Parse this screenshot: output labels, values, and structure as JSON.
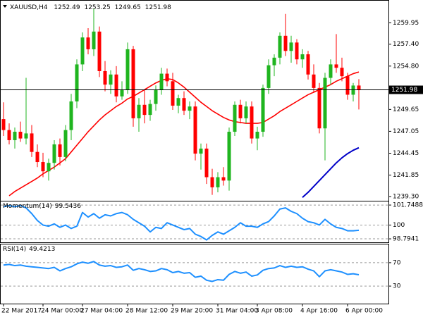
{
  "chart_data": [
    {
      "type": "candlestick",
      "title": "XAUUSD,H4",
      "categories": [
        "22 Mar 2017",
        null,
        null,
        null,
        null,
        null,
        null,
        "24 Mar 00:00",
        null,
        null,
        null,
        null,
        null,
        null,
        "27 Mar 04:00",
        null,
        null,
        null,
        null,
        null,
        null,
        null,
        "28 Mar 12:00",
        null,
        null,
        null,
        null,
        null,
        null,
        null,
        "29 Mar 20:00",
        null,
        null,
        null,
        null,
        null,
        null,
        null,
        "31 Mar 04:00",
        null,
        null,
        null,
        null,
        null,
        null,
        "3 Apr 08:00",
        null,
        null,
        null,
        null,
        null,
        null,
        null,
        "4 Apr 16:00",
        null,
        null,
        null,
        null,
        null,
        null,
        null,
        "6 Apr 00:00",
        null,
        null
      ],
      "open": [
        1248.5,
        1247.2,
        1246.0,
        1247.0,
        1246.2,
        1246.8,
        1244.6,
        1243.4,
        1242.3,
        1243.3,
        1245.5,
        1244.0,
        1247.2,
        1250.6,
        1255.0,
        1258.2,
        1256.8,
        1258.9,
        1254.2,
        1252.6,
        1253.8,
        1251.2,
        1252.0,
        1256.8,
        1248.6,
        1250.2,
        1249.0,
        1250.3,
        1252.0,
        1253.9,
        1253.0,
        1250.1,
        1251.0,
        1249.5,
        1250.0,
        1244.4,
        1245.0,
        1241.6,
        1240.4,
        1241.6,
        1241.2,
        1247.0,
        1250.2,
        1248.6,
        1250.0,
        1246.2,
        1247.0,
        1252.2,
        1254.9,
        1255.8,
        1258.4,
        1256.6,
        1257.6,
        1255.6,
        1256.2,
        1253.8,
        1252.2,
        1247.4,
        1253.4,
        1255.0,
        1254.6,
        1253.6,
        1251.4,
        1252.49
      ],
      "high": [
        1250.5,
        1248.0,
        1247.5,
        1248.2,
        1253.4,
        1247.8,
        1245.5,
        1244.5,
        1243.8,
        1246.0,
        1246.2,
        1247.8,
        1251.5,
        1255.6,
        1258.8,
        1259.3,
        1261.6,
        1259.5,
        1255.4,
        1254.3,
        1254.8,
        1253.0,
        1257.6,
        1257.2,
        1251.0,
        1252.0,
        1250.8,
        1252.5,
        1254.6,
        1254.5,
        1254.0,
        1251.4,
        1251.8,
        1250.6,
        1250.6,
        1245.6,
        1245.6,
        1242.6,
        1242.2,
        1242.8,
        1247.5,
        1250.6,
        1250.8,
        1250.6,
        1250.6,
        1247.6,
        1252.6,
        1255.6,
        1256.2,
        1258.8,
        1261.0,
        1258.4,
        1258.0,
        1256.8,
        1256.6,
        1255.0,
        1252.8,
        1254.0,
        1255.6,
        1258.6,
        1255.8,
        1254.0,
        1252.8,
        1253.25
      ],
      "low": [
        1246.5,
        1245.5,
        1245.0,
        1245.8,
        1245.5,
        1244.0,
        1242.8,
        1241.6,
        1241.2,
        1242.5,
        1243.0,
        1243.5,
        1246.0,
        1249.8,
        1254.2,
        1256.2,
        1256.0,
        1253.5,
        1251.8,
        1251.5,
        1250.5,
        1250.8,
        1251.5,
        1247.6,
        1247.0,
        1248.0,
        1248.3,
        1249.5,
        1251.4,
        1252.4,
        1249.6,
        1249.2,
        1249.0,
        1248.5,
        1243.6,
        1242.5,
        1240.8,
        1239.5,
        1239.8,
        1240.6,
        1240.0,
        1246.5,
        1248.0,
        1248.0,
        1245.6,
        1244.8,
        1246.4,
        1251.5,
        1253.6,
        1255.0,
        1256.0,
        1255.2,
        1255.0,
        1254.6,
        1253.2,
        1251.6,
        1246.8,
        1243.6,
        1252.6,
        1254.0,
        1253.0,
        1250.8,
        1250.6,
        1249.65
      ],
      "close": [
        1247.2,
        1246.0,
        1247.0,
        1246.2,
        1246.8,
        1244.6,
        1243.4,
        1242.3,
        1243.3,
        1245.5,
        1244.0,
        1247.2,
        1250.6,
        1255.0,
        1258.2,
        1256.8,
        1258.9,
        1254.2,
        1252.6,
        1253.8,
        1251.2,
        1252.0,
        1256.8,
        1248.6,
        1250.2,
        1249.0,
        1250.3,
        1252.0,
        1253.9,
        1253.0,
        1250.1,
        1251.0,
        1249.5,
        1250.0,
        1244.4,
        1245.0,
        1241.6,
        1240.4,
        1241.6,
        1241.2,
        1247.0,
        1250.2,
        1248.6,
        1250.0,
        1246.2,
        1247.0,
        1252.2,
        1254.9,
        1255.8,
        1258.4,
        1256.6,
        1257.6,
        1255.6,
        1256.2,
        1253.8,
        1252.2,
        1247.4,
        1253.4,
        1255.0,
        1254.6,
        1253.6,
        1251.4,
        1252.49,
        1251.98
      ],
      "up_color": "#1fb51f",
      "down_color": "#ff0000",
      "overlays": [
        {
          "color": "#ff0000",
          "values": [
            null,
            1239.4,
            1239.9,
            1240.3,
            1240.7,
            1241.1,
            1241.5,
            1242.0,
            1242.4,
            1242.8,
            1243.3,
            1243.8,
            1244.6,
            1245.4,
            1246.2,
            1247.0,
            1247.7,
            1248.4,
            1249.0,
            1249.5,
            1250.0,
            1250.4,
            1250.9,
            1251.2,
            1251.6,
            1252.0,
            1252.4,
            1252.8,
            1253.1,
            1253.3,
            1253.2,
            1252.8,
            1252.3,
            1251.7,
            1251.1,
            1250.5,
            1250.0,
            1249.5,
            1249.1,
            1248.7,
            1248.4,
            1248.2,
            1248.1,
            1248.0,
            1248.0,
            1248.0,
            1248.1,
            1248.5,
            1248.9,
            1249.4,
            1249.8,
            1250.2,
            1250.6,
            1251.0,
            1251.4,
            1251.7,
            1252.0,
            1252.3,
            1252.6,
            1253.0,
            1253.3,
            1253.6,
            1253.9,
            1254.1
          ]
        },
        {
          "color": "#0000c8",
          "values": [
            null,
            null,
            null,
            null,
            null,
            null,
            null,
            null,
            null,
            null,
            null,
            null,
            null,
            null,
            null,
            null,
            null,
            null,
            null,
            null,
            null,
            null,
            null,
            null,
            null,
            null,
            null,
            null,
            null,
            null,
            null,
            null,
            null,
            null,
            null,
            null,
            null,
            null,
            null,
            null,
            null,
            null,
            null,
            null,
            null,
            null,
            null,
            null,
            null,
            null,
            null,
            null,
            null,
            1239.2,
            1239.8,
            1240.5,
            1241.2,
            1241.9,
            1242.6,
            1243.3,
            1243.9,
            1244.4,
            1244.8,
            1245.1
          ]
        }
      ],
      "ylim": [
        1238.8,
        1262.4
      ],
      "yticks": [
        1259.95,
        {
          "value": 1257.4,
          "label": "1257.40"
        },
        {
          "value": 1254.8,
          "label": "1254.80"
        },
        1249.65,
        1247.05,
        1244.45,
        1241.85,
        {
          "value": 1239.3,
          "label": "1239.30"
        }
      ],
      "grid": false
    },
    {
      "type": "line",
      "series": [
        {
          "name": "Momentum(14)",
          "color": "#1e90ff",
          "values": [
            101.6,
            101.7,
            101.6,
            101.7,
            101.5,
            101.0,
            100.4,
            100.0,
            99.9,
            100.1,
            99.8,
            100.0,
            99.7,
            99.9,
            101.1,
            100.7,
            101.0,
            100.6,
            100.9,
            100.8,
            101.0,
            101.1,
            100.9,
            100.5,
            100.2,
            99.9,
            99.4,
            99.8,
            99.7,
            100.2,
            100.0,
            99.8,
            99.6,
            99.7,
            99.2,
            99.0,
            98.7,
            99.1,
            99.4,
            99.2,
            99.5,
            99.8,
            100.2,
            99.9,
            99.9,
            99.8,
            100.1,
            100.3,
            100.8,
            101.4,
            101.5,
            101.2,
            101.0,
            100.6,
            100.3,
            100.2,
            100.0,
            100.5,
            100.1,
            99.8,
            99.7,
            99.5,
            99.5,
            99.5436
          ]
        }
      ],
      "ylim": [
        98.49,
        102.0
      ],
      "yticks": [
        101.7488,
        100,
        98.7941
      ],
      "grid": true
    },
    {
      "type": "line",
      "series": [
        {
          "name": "RSI(14)",
          "color": "#1e90ff",
          "values": [
            66,
            67,
            65,
            66,
            64,
            63,
            62,
            61,
            60,
            62,
            56,
            60,
            63,
            68,
            71,
            69,
            72,
            66,
            64,
            65,
            62,
            63,
            66,
            57,
            60,
            58,
            55,
            56,
            60,
            58,
            53,
            55,
            52,
            53,
            45,
            47,
            40,
            38,
            41,
            40,
            50,
            55,
            52,
            54,
            47,
            49,
            57,
            60,
            61,
            65,
            62,
            64,
            62,
            63,
            59,
            56,
            46,
            56,
            58,
            56,
            54,
            50,
            51,
            49.4213
          ]
        }
      ],
      "ylim": [
        0,
        100
      ],
      "yticks": [
        70,
        30
      ],
      "grid": true
    }
  ]
}
